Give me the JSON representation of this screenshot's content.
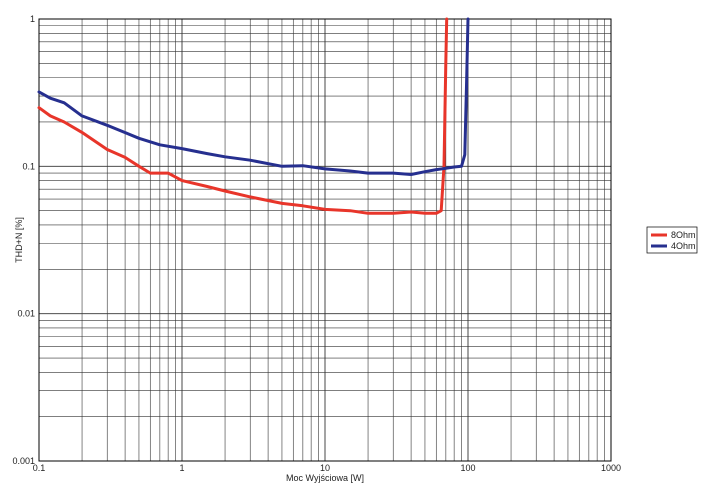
{
  "chart_data": {
    "type": "line",
    "xlabel": "Moc Wyjściowa [W]",
    "ylabel": "THD+N [%]",
    "x_scale": "log",
    "y_scale": "log",
    "xlim": [
      0.1,
      1000
    ],
    "ylim": [
      0.001,
      1
    ],
    "grid": true,
    "legend_placement": "right",
    "x_tick_labels": [
      "0.1",
      "1",
      "10",
      "100",
      "1000"
    ],
    "y_tick_labels": [
      "0.001",
      "0.01",
      "0.1",
      "1"
    ],
    "series": [
      {
        "name": "8Ohm",
        "color": "#e8352a",
        "x": [
          0.1,
          0.12,
          0.15,
          0.2,
          0.3,
          0.4,
          0.5,
          0.6,
          0.7,
          0.8,
          1,
          1.5,
          2,
          3,
          5,
          7,
          10,
          15,
          20,
          30,
          40,
          50,
          60,
          65,
          68,
          70,
          71
        ],
        "y": [
          0.25,
          0.22,
          0.2,
          0.17,
          0.13,
          0.115,
          0.1,
          0.09,
          0.09,
          0.09,
          0.08,
          0.073,
          0.068,
          0.062,
          0.056,
          0.054,
          0.051,
          0.05,
          0.048,
          0.048,
          0.049,
          0.048,
          0.048,
          0.05,
          0.1,
          0.5,
          1
        ]
      },
      {
        "name": "4Ohm",
        "color": "#262f8f",
        "x": [
          0.1,
          0.12,
          0.15,
          0.2,
          0.3,
          0.5,
          0.7,
          1,
          1.5,
          2,
          3,
          5,
          7,
          10,
          15,
          20,
          30,
          40,
          50,
          60,
          70,
          80,
          90,
          95,
          98,
          100
        ],
        "y": [
          0.32,
          0.29,
          0.27,
          0.22,
          0.19,
          0.155,
          0.14,
          0.132,
          0.122,
          0.116,
          0.11,
          0.1,
          0.101,
          0.096,
          0.093,
          0.09,
          0.09,
          0.088,
          0.092,
          0.095,
          0.097,
          0.099,
          0.1,
          0.12,
          0.4,
          1
        ]
      }
    ]
  }
}
